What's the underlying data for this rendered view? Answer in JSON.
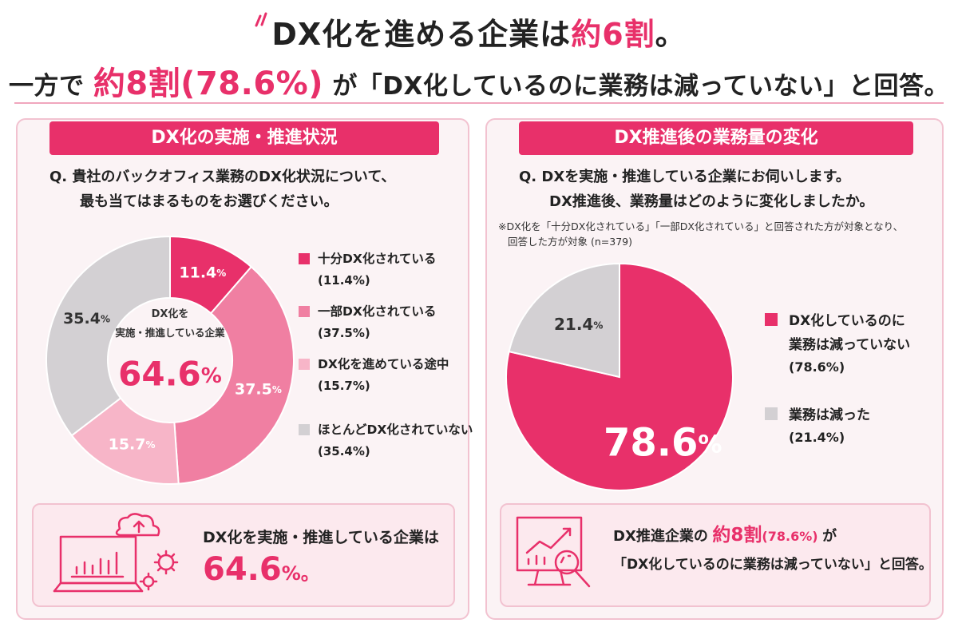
{
  "header": {
    "line1_pre": "DX化を進める企業は",
    "line1_em": "約6割",
    "line1_post": "。",
    "line2_pre": "一方で",
    "line2_em_big": "約8割",
    "line2_em_pct": "(78.6%)",
    "line2_post": "が「DX化しているのに業務は減っていない」と回答。"
  },
  "left_panel": {
    "title": "DX化の実施・推進状況",
    "question_line1": "Q. 貴社のバックオフィス業務のDX化状況について、",
    "question_line2": "最も当てはまるものをお選びください。",
    "center_label_line1": "DX化を",
    "center_label_line2": "実施・推進している企業",
    "center_value": "64.6",
    "center_unit": "%",
    "callout_text": "DX化を実施・推進している企業は",
    "callout_value": "64.6",
    "callout_unit": "%。"
  },
  "right_panel": {
    "title": "DX推進後の業務量の変化",
    "question_line1": "Q. DXを実施・推進している企業にお伺いします。",
    "question_line2": "DX推進後、業務量はどのように変化しましたか。",
    "note_line1": "※DX化を「十分DX化されている」「一部DX化されている」と回答された方が対象となり、",
    "note_line2": "回答した方が対象 (n=379)",
    "callout_line1_pre": "DX推進企業の",
    "callout_line1_em": "約8割",
    "callout_line1_pct": "(78.6%)",
    "callout_line1_post": "が",
    "callout_line2": "「DX化しているのに業務は減っていない」と回答。"
  },
  "colors": {
    "accent": "#e8306a",
    "pink_mid": "#f07fa2",
    "pink_light": "#f7b5c8",
    "gray": "#d3d0d3"
  },
  "chart_data": [
    {
      "type": "pie",
      "donut": true,
      "categories": [
        "十分DX化されている",
        "一部DX化されている",
        "DX化を進めている途中",
        "ほとんどDX化されていない"
      ],
      "values": [
        11.4,
        37.5,
        15.7,
        35.4
      ],
      "labels": [
        "11.4",
        "37.5",
        "15.7",
        "35.4"
      ],
      "legend_pcts": [
        "(11.4%)",
        "(37.5%)",
        "(15.7%)",
        "(35.4%)"
      ],
      "unit": "%",
      "colors": [
        "#e8306a",
        "#f07fa2",
        "#f7b5c8",
        "#d3d0d3"
      ],
      "legend": "right"
    },
    {
      "type": "pie",
      "categories": [
        "DX化しているのに業務は減っていない",
        "業務は減った"
      ],
      "legend_lines": [
        [
          "DX化しているのに",
          "業務は減っていない"
        ],
        [
          "業務は減った"
        ]
      ],
      "values": [
        78.6,
        21.4
      ],
      "labels": [
        "78.6",
        "21.4"
      ],
      "legend_pcts": [
        "(78.6%)",
        "(21.4%)"
      ],
      "unit": "%",
      "colors": [
        "#e8306a",
        "#d3d0d3"
      ],
      "legend": "right"
    }
  ]
}
